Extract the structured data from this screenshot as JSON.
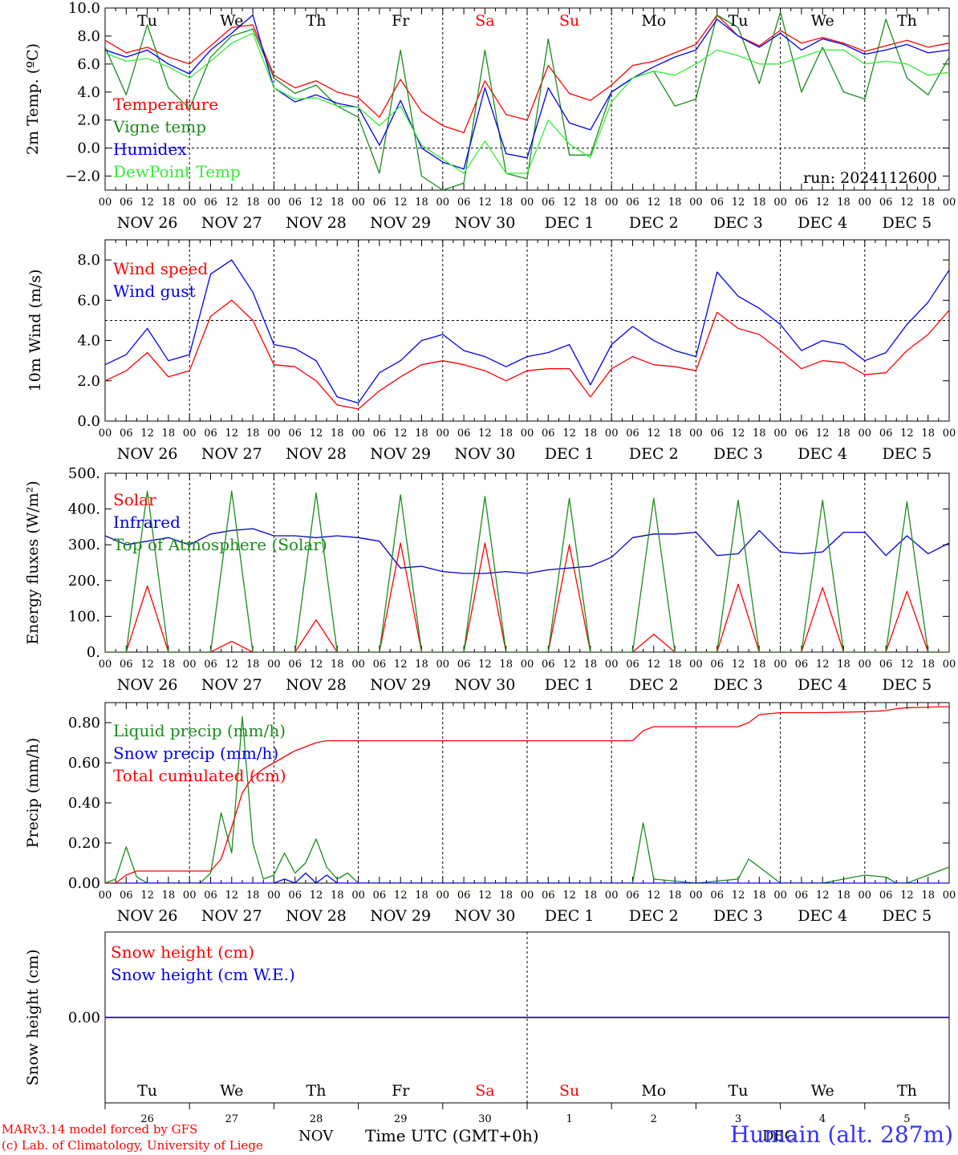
{
  "run_label": "run: 2024112600",
  "footer": {
    "model": "MARv3.14 model forced by GFS",
    "credit": "(c) Lab. of Climatology, University of Liege",
    "station": "Humain (alt. 287m)",
    "xtitle": "Time UTC (GMT+0h)",
    "month_left": "NOV",
    "month_right": "DEC"
  },
  "weekdays": [
    {
      "label": "Tu",
      "color": "#000000"
    },
    {
      "label": "We",
      "color": "#000000"
    },
    {
      "label": "Th",
      "color": "#000000"
    },
    {
      "label": "Fr",
      "color": "#000000"
    },
    {
      "label": "Sa",
      "color": "#ff0000"
    },
    {
      "label": "Su",
      "color": "#ff0000"
    },
    {
      "label": "Mo",
      "color": "#000000"
    },
    {
      "label": "Tu",
      "color": "#000000"
    },
    {
      "label": "We",
      "color": "#000000"
    },
    {
      "label": "Th",
      "color": "#000000"
    }
  ],
  "day_numbers": [
    "26",
    "27",
    "28",
    "29",
    "30",
    "1",
    "2",
    "3",
    "4",
    "5"
  ],
  "date_labels": [
    "NOV 26",
    "NOV 27",
    "NOV 28",
    "NOV 29",
    "NOV 30",
    "DEC  1",
    "DEC  2",
    "DEC  3",
    "DEC  4",
    "DEC  5"
  ],
  "hour_labels": [
    "00",
    "06",
    "12",
    "18"
  ],
  "chart_data": [
    {
      "type": "line",
      "ylabel": "2m Temp. (ºC)",
      "ylim": [
        -3,
        10
      ],
      "yticks": [
        -2,
        0,
        2,
        4,
        6,
        8,
        10
      ],
      "ytick_labels": [
        "−2.0",
        "0.0",
        "2.0",
        "4.0",
        "6.0",
        "8.0",
        "10.0"
      ],
      "ref_line": 0,
      "x_hours_from_nov26_00": [
        0,
        6,
        12,
        18,
        24,
        30,
        36,
        42,
        48,
        54,
        60,
        66,
        72,
        78,
        84,
        90,
        96,
        102,
        108,
        114,
        120,
        126,
        132,
        138,
        144,
        150,
        156,
        162,
        168,
        174,
        180,
        186,
        192,
        198,
        204,
        210,
        216,
        222,
        228,
        234,
        240
      ],
      "series": [
        {
          "name": "Temperature",
          "color": "#ff0000",
          "values": [
            7.7,
            6.8,
            7.2,
            6.5,
            6.0,
            7.3,
            8.6,
            8.8,
            5.2,
            4.3,
            4.8,
            4.0,
            3.6,
            2.2,
            4.9,
            2.6,
            1.6,
            1.1,
            4.8,
            2.4,
            2.0,
            5.9,
            3.9,
            3.4,
            4.5,
            5.9,
            6.2,
            6.8,
            7.4,
            9.5,
            8.0,
            7.3,
            8.4,
            7.5,
            7.9,
            7.5,
            6.9,
            7.3,
            7.7,
            7.2,
            7.5
          ]
        },
        {
          "name": "Vigne temp",
          "color": "#1a8c1a",
          "values": [
            7.2,
            3.8,
            8.8,
            4.3,
            2.8,
            6.5,
            8.0,
            8.5,
            5.0,
            3.9,
            4.5,
            3.0,
            2.2,
            -1.8,
            7.0,
            -2.0,
            -3.0,
            -2.5,
            7.0,
            -1.8,
            -2.2,
            7.8,
            -0.5,
            -0.5,
            4.0,
            5.0,
            5.5,
            3.0,
            3.5,
            9.5,
            8.6,
            4.6,
            9.7,
            4.0,
            7.2,
            4.0,
            3.5,
            9.2,
            5.0,
            3.8,
            6.5
          ]
        },
        {
          "name": "Humidex",
          "color": "#0000ee",
          "values": [
            7.0,
            6.5,
            7.0,
            6.0,
            5.3,
            7.0,
            8.2,
            9.5,
            4.3,
            3.3,
            3.8,
            3.2,
            2.9,
            0.2,
            3.4,
            0.0,
            -1.0,
            -1.5,
            4.3,
            -0.4,
            -0.7,
            4.3,
            1.8,
            1.3,
            4.0,
            5.0,
            5.8,
            6.5,
            7.0,
            9.2,
            8.0,
            7.2,
            8.2,
            7.0,
            7.8,
            7.4,
            6.7,
            7.0,
            7.4,
            6.8,
            7.0
          ]
        },
        {
          "name": "DewPoint Temp",
          "color": "#33ee33",
          "values": [
            6.8,
            6.2,
            6.4,
            5.8,
            5.0,
            6.2,
            7.5,
            8.2,
            4.3,
            3.5,
            3.6,
            3.0,
            2.9,
            1.6,
            3.0,
            0.2,
            -0.8,
            -1.8,
            0.5,
            -1.8,
            -1.8,
            2.0,
            0.3,
            -0.7,
            3.3,
            5.0,
            5.5,
            5.2,
            6.0,
            7.0,
            6.6,
            6.0,
            6.0,
            6.5,
            7.0,
            7.0,
            6.0,
            6.2,
            6.0,
            5.2,
            5.4
          ]
        }
      ]
    },
    {
      "type": "line",
      "ylabel": "10m Wind (m/s)",
      "ylim": [
        0,
        9
      ],
      "yticks": [
        0,
        2,
        4,
        6,
        8
      ],
      "ytick_labels": [
        "0.0",
        "2.0",
        "4.0",
        "6.0",
        "8.0"
      ],
      "ref_line": 5,
      "x_hours_from_nov26_00": [
        0,
        6,
        12,
        18,
        24,
        30,
        36,
        42,
        48,
        54,
        60,
        66,
        72,
        78,
        84,
        90,
        96,
        102,
        108,
        114,
        120,
        126,
        132,
        138,
        144,
        150,
        156,
        162,
        168,
        174,
        180,
        186,
        192,
        198,
        204,
        210,
        216,
        222,
        228,
        234,
        240
      ],
      "series": [
        {
          "name": "Wind speed",
          "color": "#ff0000",
          "values": [
            2.0,
            2.5,
            3.4,
            2.2,
            2.5,
            5.2,
            6.0,
            5.0,
            2.8,
            2.7,
            2.0,
            0.8,
            0.6,
            1.5,
            2.2,
            2.8,
            3.0,
            2.8,
            2.5,
            2.0,
            2.5,
            2.6,
            2.6,
            1.2,
            2.6,
            3.2,
            2.8,
            2.7,
            2.5,
            5.4,
            4.6,
            4.3,
            3.5,
            2.6,
            3.0,
            2.9,
            2.3,
            2.4,
            3.5,
            4.3,
            5.5
          ]
        },
        {
          "name": "Wind gust",
          "color": "#0000ee",
          "values": [
            2.8,
            3.3,
            4.6,
            3.0,
            3.3,
            7.3,
            8.0,
            6.4,
            3.8,
            3.6,
            3.0,
            1.2,
            0.9,
            2.4,
            3.0,
            4.0,
            4.3,
            3.5,
            3.2,
            2.7,
            3.2,
            3.4,
            3.8,
            1.8,
            3.8,
            4.7,
            4.0,
            3.5,
            3.2,
            7.4,
            6.2,
            5.6,
            4.8,
            3.5,
            4.0,
            3.8,
            3.0,
            3.4,
            4.8,
            5.9,
            7.5
          ]
        }
      ]
    },
    {
      "type": "line",
      "ylabel": "Energy fluxes (W/m²)",
      "ylim": [
        0,
        500
      ],
      "yticks": [
        0,
        100,
        200,
        300,
        400,
        500
      ],
      "ytick_labels": [
        "0.",
        "100.",
        "200.",
        "300.",
        "400.",
        "500."
      ],
      "x_hours_from_nov26_00": [
        0,
        6,
        12,
        18,
        24,
        30,
        36,
        42,
        48,
        54,
        60,
        66,
        72,
        78,
        84,
        90,
        96,
        102,
        108,
        114,
        120,
        126,
        132,
        138,
        144,
        150,
        156,
        162,
        168,
        174,
        180,
        186,
        192,
        198,
        204,
        210,
        216,
        222,
        228,
        234,
        240
      ],
      "series": [
        {
          "name": "Solar",
          "color": "#ff0000",
          "values": [
            0,
            0,
            185,
            0,
            0,
            0,
            30,
            0,
            0,
            0,
            90,
            0,
            0,
            0,
            305,
            0,
            0,
            0,
            305,
            0,
            0,
            0,
            300,
            0,
            0,
            0,
            50,
            0,
            0,
            0,
            190,
            0,
            0,
            0,
            180,
            0,
            0,
            0,
            170,
            0,
            0
          ]
        },
        {
          "name": "Infrared",
          "color": "#0000cc",
          "values": [
            325,
            300,
            310,
            320,
            300,
            330,
            340,
            345,
            325,
            325,
            320,
            325,
            320,
            310,
            235,
            240,
            225,
            220,
            220,
            225,
            220,
            230,
            235,
            240,
            265,
            320,
            330,
            330,
            335,
            270,
            275,
            340,
            280,
            275,
            280,
            335,
            335,
            270,
            325,
            275,
            305
          ]
        },
        {
          "name": "Top of Atmosphere (Solar)",
          "color": "#1a8c1a",
          "values": [
            0,
            0,
            450,
            0,
            0,
            0,
            450,
            0,
            0,
            0,
            445,
            0,
            0,
            0,
            440,
            0,
            0,
            0,
            435,
            0,
            0,
            0,
            430,
            0,
            0,
            0,
            430,
            0,
            0,
            0,
            425,
            0,
            0,
            0,
            425,
            0,
            0,
            0,
            420,
            0,
            0
          ]
        }
      ]
    },
    {
      "type": "line",
      "ylabel": "Precip (mm/h)",
      "ylim": [
        0,
        0.9
      ],
      "yticks": [
        0,
        0.2,
        0.4,
        0.6,
        0.8
      ],
      "ytick_labels": [
        "0.00",
        "0.20",
        "0.40",
        "0.60",
        "0.80"
      ],
      "x_hours_from_nov26_00": [
        0,
        3,
        6,
        9,
        12,
        15,
        18,
        21,
        24,
        27,
        30,
        33,
        36,
        39,
        42,
        45,
        48,
        51,
        54,
        57,
        60,
        63,
        66,
        69,
        72,
        84,
        96,
        108,
        120,
        132,
        144,
        150,
        153,
        156,
        168,
        180,
        183,
        186,
        192,
        204,
        216,
        222,
        225,
        228,
        240
      ],
      "series": [
        {
          "name": "Liquid precip (mm/h)",
          "color": "#1a8c1a",
          "values": [
            0,
            0.02,
            0.18,
            0.03,
            0,
            0,
            0,
            0,
            0,
            0,
            0.05,
            0.35,
            0.15,
            0.83,
            0.2,
            0.02,
            0.04,
            0.15,
            0.05,
            0.1,
            0.22,
            0.08,
            0.02,
            0.05,
            0,
            0,
            0,
            0,
            0,
            0,
            0,
            0,
            0.3,
            0.02,
            0,
            0.02,
            0.12,
            0.08,
            0,
            0,
            0.04,
            0.03,
            0,
            0,
            0.08
          ]
        },
        {
          "name": "Snow precip (mm/h)",
          "color": "#0000ee",
          "values": [
            0,
            0,
            0,
            0,
            0,
            0,
            0,
            0,
            0,
            0,
            0,
            0,
            0,
            0,
            0,
            0,
            0,
            0.02,
            0,
            0.05,
            0,
            0.04,
            0,
            0,
            0,
            0,
            0,
            0,
            0,
            0,
            0,
            0,
            0,
            0,
            0,
            0,
            0,
            0,
            0,
            0,
            0,
            0,
            0,
            0,
            0
          ]
        },
        {
          "name": "Total cumulated (cm)",
          "color": "#ff0000",
          "values": [
            0,
            0,
            0.04,
            0.06,
            0.06,
            0.06,
            0.06,
            0.06,
            0.06,
            0.06,
            0.06,
            0.12,
            0.28,
            0.45,
            0.53,
            0.57,
            0.6,
            0.63,
            0.66,
            0.68,
            0.7,
            0.71,
            0.71,
            0.71,
            0.71,
            0.71,
            0.71,
            0.71,
            0.71,
            0.71,
            0.71,
            0.71,
            0.76,
            0.78,
            0.78,
            0.78,
            0.8,
            0.84,
            0.85,
            0.85,
            0.855,
            0.86,
            0.87,
            0.875,
            0.88
          ]
        }
      ]
    },
    {
      "type": "line",
      "ylabel": "Snow height (cm)",
      "ytick_labels": [
        "0.00"
      ],
      "x_hours_from_nov26_00": [
        0,
        240
      ],
      "series": [
        {
          "name": "Snow height (cm)",
          "color": "#ff0000",
          "values": [
            0,
            0
          ]
        },
        {
          "name": "Snow height (cm W.E.)",
          "color": "#0000ee",
          "values": [
            0,
            0
          ]
        }
      ]
    }
  ]
}
